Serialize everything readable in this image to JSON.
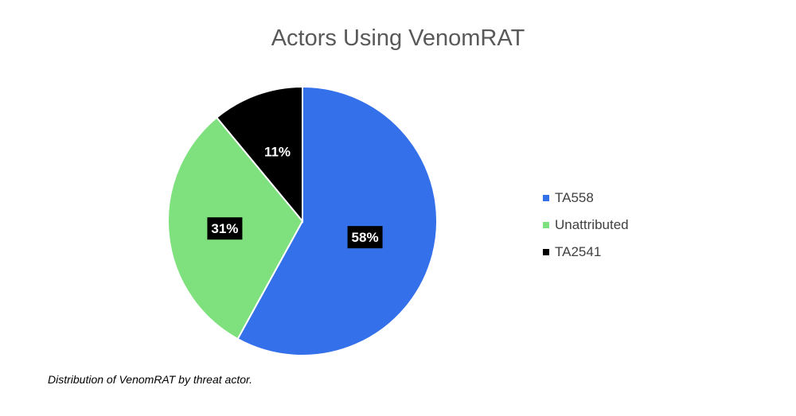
{
  "chart_data": {
    "type": "pie",
    "title": "Actors Using VenomRAT",
    "slices": [
      {
        "label": "TA558",
        "value": 58,
        "display": "58%",
        "color": "#3470ea"
      },
      {
        "label": "Unattributed",
        "value": 31,
        "display": "31%",
        "color": "#7ee17e"
      },
      {
        "label": "TA2541",
        "value": 11,
        "display": "11%",
        "color": "#000000"
      }
    ],
    "legend_position": "right",
    "data_label_background": "#000000",
    "data_label_color": "#ffffff"
  },
  "caption": "Distribution of VenomRAT by threat actor."
}
